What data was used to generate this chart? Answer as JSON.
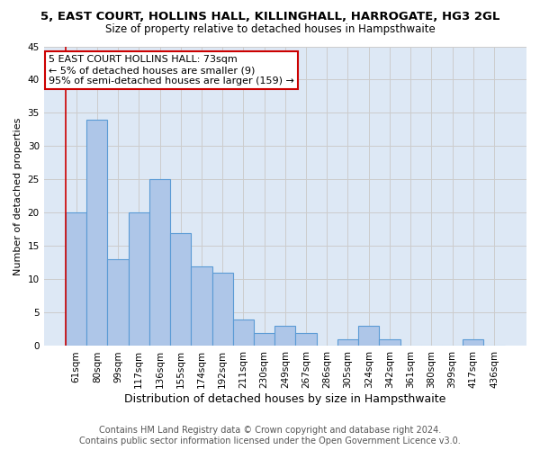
{
  "title": "5, EAST COURT, HOLLINS HALL, KILLINGHALL, HARROGATE, HG3 2GL",
  "subtitle": "Size of property relative to detached houses in Hampsthwaite",
  "xlabel": "Distribution of detached houses by size in Hampsthwaite",
  "ylabel": "Number of detached properties",
  "categories": [
    "61sqm",
    "80sqm",
    "99sqm",
    "117sqm",
    "136sqm",
    "155sqm",
    "174sqm",
    "192sqm",
    "211sqm",
    "230sqm",
    "249sqm",
    "267sqm",
    "286sqm",
    "305sqm",
    "324sqm",
    "342sqm",
    "361sqm",
    "380sqm",
    "399sqm",
    "417sqm",
    "436sqm"
  ],
  "values": [
    20,
    34,
    13,
    20,
    25,
    17,
    12,
    11,
    4,
    2,
    3,
    2,
    0,
    1,
    3,
    1,
    0,
    0,
    0,
    1,
    0
  ],
  "bar_color": "#aec6e8",
  "bar_edge_color": "#5b9bd5",
  "annotation_line1": "5 EAST COURT HOLLINS HALL: 73sqm",
  "annotation_line2": "← 5% of detached houses are smaller (9)",
  "annotation_line3": "95% of semi-detached houses are larger (159) →",
  "annotation_box_color": "#ffffff",
  "annotation_box_edge_color": "#cc0000",
  "ylim": [
    0,
    45
  ],
  "yticks": [
    0,
    5,
    10,
    15,
    20,
    25,
    30,
    35,
    40,
    45
  ],
  "grid_color": "#cccccc",
  "background_color": "#dde8f5",
  "footer_line1": "Contains HM Land Registry data © Crown copyright and database right 2024.",
  "footer_line2": "Contains public sector information licensed under the Open Government Licence v3.0.",
  "title_fontsize": 9.5,
  "subtitle_fontsize": 8.5,
  "xlabel_fontsize": 9,
  "ylabel_fontsize": 8,
  "tick_fontsize": 7.5,
  "footer_fontsize": 7
}
